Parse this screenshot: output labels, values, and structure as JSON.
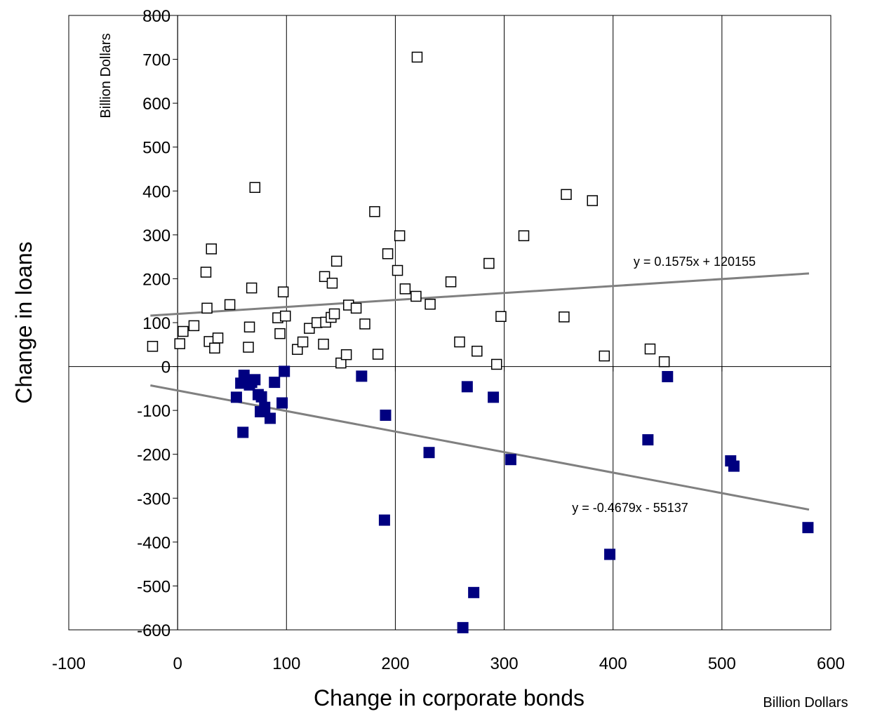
{
  "chart_data": {
    "type": "scatter",
    "xlabel": "Change in corporate bonds",
    "ylabel": "Change in loans",
    "x_unit_label": "Billion Dollars",
    "y_unit_label": "Billion Dollars",
    "xlim": [
      -100,
      600
    ],
    "ylim": [
      -600,
      800
    ],
    "x_ticks": [
      "-100",
      "0",
      "100",
      "200",
      "300",
      "400",
      "500",
      "600"
    ],
    "y_ticks": [
      "-600",
      "-500",
      "-400",
      "-300",
      "-200",
      "-100",
      "0",
      "100",
      "200",
      "300",
      "400",
      "500",
      "600",
      "700",
      "800"
    ],
    "grid": "vertical",
    "series": [
      {
        "marker": "open-square",
        "color": "#000000",
        "points": [
          [
            -23,
            46
          ],
          [
            2,
            52
          ],
          [
            5,
            80
          ],
          [
            15,
            93
          ],
          [
            26,
            215
          ],
          [
            27,
            133
          ],
          [
            29,
            57
          ],
          [
            31,
            268
          ],
          [
            34,
            42
          ],
          [
            37,
            65
          ],
          [
            48,
            141
          ],
          [
            65,
            44
          ],
          [
            66,
            90
          ],
          [
            68,
            179
          ],
          [
            71,
            408
          ],
          [
            92,
            111
          ],
          [
            94,
            75
          ],
          [
            97,
            170
          ],
          [
            99,
            115
          ],
          [
            110,
            39
          ],
          [
            115,
            56
          ],
          [
            121,
            87
          ],
          [
            128,
            100
          ],
          [
            134,
            51
          ],
          [
            135,
            205
          ],
          [
            136,
            101
          ],
          [
            141,
            112
          ],
          [
            142,
            190
          ],
          [
            144,
            120
          ],
          [
            146,
            240
          ],
          [
            150,
            8
          ],
          [
            155,
            27
          ],
          [
            157,
            140
          ],
          [
            164,
            133
          ],
          [
            172,
            97
          ],
          [
            181,
            353
          ],
          [
            184,
            28
          ],
          [
            193,
            257
          ],
          [
            202,
            219
          ],
          [
            204,
            298
          ],
          [
            209,
            177
          ],
          [
            219,
            160
          ],
          [
            220,
            705
          ],
          [
            232,
            142
          ],
          [
            251,
            193
          ],
          [
            259,
            56
          ],
          [
            286,
            235
          ],
          [
            275,
            35
          ],
          [
            293,
            5
          ],
          [
            297,
            114
          ],
          [
            318,
            298
          ],
          [
            355,
            113
          ],
          [
            357,
            392
          ],
          [
            381,
            378
          ],
          [
            392,
            24
          ],
          [
            434,
            40
          ],
          [
            447,
            11
          ]
        ]
      },
      {
        "marker": "filled-square",
        "color": "#000080",
        "points": [
          [
            54,
            -70
          ],
          [
            58,
            -38
          ],
          [
            60,
            -150
          ],
          [
            61,
            -20
          ],
          [
            66,
            -42
          ],
          [
            68,
            -36
          ],
          [
            71,
            -30
          ],
          [
            74,
            -64
          ],
          [
            76,
            -103
          ],
          [
            77,
            -69
          ],
          [
            80,
            -93
          ],
          [
            85,
            -118
          ],
          [
            89,
            -36
          ],
          [
            96,
            -83
          ],
          [
            98,
            -11
          ],
          [
            169,
            -22
          ],
          [
            190,
            -350
          ],
          [
            191,
            -111
          ],
          [
            231,
            -196
          ],
          [
            262,
            -595
          ],
          [
            266,
            -46
          ],
          [
            272,
            -515
          ],
          [
            290,
            -70
          ],
          [
            306,
            -212
          ],
          [
            397,
            -428
          ],
          [
            432,
            -167
          ],
          [
            450,
            -23
          ],
          [
            508,
            -215
          ],
          [
            511,
            -227
          ],
          [
            579,
            -367
          ]
        ]
      }
    ],
    "trendlines": [
      {
        "label": "y = 0.1575x + 120155",
        "x_range": [
          -25,
          580
        ],
        "y_range": [
          116,
          212
        ],
        "color": "#808080"
      },
      {
        "label": "y = -0.4679x - 55137",
        "x_range": [
          -25,
          580
        ],
        "y_range": [
          -43,
          -326
        ],
        "color": "#808080"
      }
    ]
  }
}
